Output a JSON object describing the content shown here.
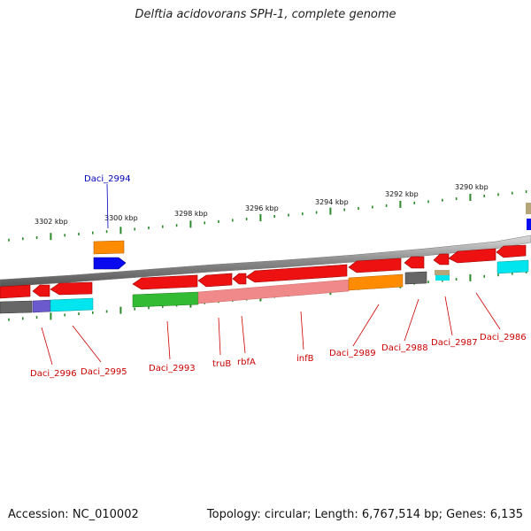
{
  "title": "Delftia acidovorans SPH-1, complete genome",
  "footer": {
    "accession": "Accession: NC_010002",
    "topology": "Topology: circular; Length: 6,767,514 bp; Genes: 6,135"
  },
  "scale": {
    "labels": [
      "3302 kbp",
      "3300 kbp",
      "3298 kbp",
      "3296 kbp",
      "3294 kbp",
      "3292 kbp",
      "3290 kbp"
    ]
  },
  "genes": [
    {
      "name": "Daci_2994",
      "color": "#0000bb"
    },
    {
      "name": "Daci_2996",
      "color": "#cc0000"
    },
    {
      "name": "Daci_2995",
      "color": "#cc0000"
    },
    {
      "name": "Daci_2993",
      "color": "#cc0000"
    },
    {
      "name": "truB",
      "color": "#cc0000"
    },
    {
      "name": "rbfA",
      "color": "#cc0000"
    },
    {
      "name": "infB",
      "color": "#cc0000"
    },
    {
      "name": "Daci_2989",
      "color": "#cc0000"
    },
    {
      "name": "Daci_2988",
      "color": "#cc0000"
    },
    {
      "name": "Daci_2987",
      "color": "#cc0000"
    },
    {
      "name": "Daci_2986",
      "color": "#cc0000"
    }
  ]
}
